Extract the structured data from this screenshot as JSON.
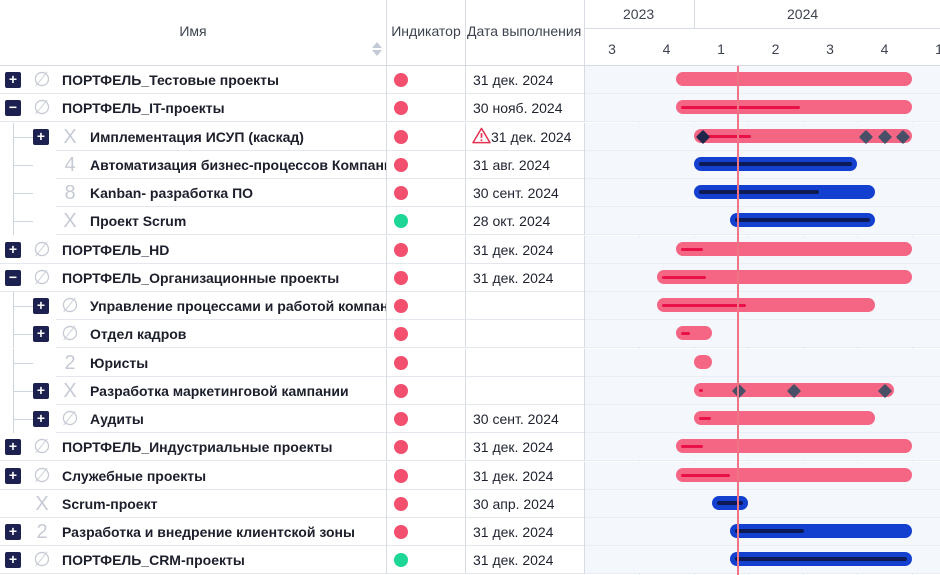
{
  "header": {
    "name_label": "Имя",
    "indicator_label": "Индикатор",
    "date_label": "Дата выполнения"
  },
  "timeline": {
    "years": [
      {
        "label": "2023",
        "x": 38
      },
      {
        "label": "2024",
        "x": 202
      }
    ],
    "quarters": [
      "3",
      "4",
      "1",
      "2",
      "3",
      "4",
      "1"
    ],
    "today": "2024-03"
  },
  "colors": {
    "red": "#f2506e",
    "green": "#1ed695",
    "bar_pink": "#f46684",
    "progress_pink": "#e8114a",
    "bar_blue": "#1340cf",
    "progress_navy": "#0d1a55",
    "toggle": "#1d2150"
  },
  "rows": [
    {
      "level": 0,
      "toggle": "+",
      "glyph": "∅",
      "title": "ПОРТФЕЛЬ_Тестовые проекты",
      "indicator": "red",
      "date": "31 дек. 2024",
      "warn": false,
      "bar": {
        "color": "pink",
        "start": "2023-12",
        "end": "2024-12",
        "progress": 0
      }
    },
    {
      "level": 0,
      "toggle": "−",
      "glyph": "∅",
      "title": "ПОРТФЕЛЬ_IT-проекты",
      "indicator": "red",
      "date": "30 нояб. 2024",
      "warn": false,
      "bar": {
        "color": "pink",
        "start": "2023-12",
        "end": "2024-12",
        "progress": 0.53
      }
    },
    {
      "level": 1,
      "toggle": "+",
      "glyph": "X",
      "title": "Имплементация ИСУП (каскад)",
      "indicator": "red",
      "date": "31 дек. 2024",
      "warn": true,
      "bar": {
        "color": "pink",
        "start": "2024-01",
        "end": "2024-12",
        "progress": 0.25,
        "milestones": [
          "2024-01",
          "2024-10",
          "2024-11",
          "2024-12"
        ]
      }
    },
    {
      "level": 1,
      "toggle": "",
      "glyph": "4",
      "title": "Автоматизация бизнес-процессов Компании",
      "indicator": "red",
      "date": "31 авг. 2024",
      "warn": false,
      "bar": {
        "color": "blue",
        "start": "2024-01",
        "end": "2024-09",
        "progress": 1
      }
    },
    {
      "level": 1,
      "toggle": "",
      "glyph": "8",
      "title": "Kanban- разработка ПО",
      "indicator": "red",
      "date": "30 сент. 2024",
      "warn": false,
      "bar": {
        "color": "blue",
        "start": "2024-01",
        "end": "2024-10",
        "progress": 0.7
      }
    },
    {
      "level": 1,
      "toggle": "",
      "glyph": "X",
      "title": "Проект Scrum",
      "indicator": "green",
      "date": "28 окт. 2024",
      "warn": false,
      "bar": {
        "color": "blue",
        "start": "2024-03",
        "end": "2024-10",
        "progress": 1
      }
    },
    {
      "level": 0,
      "toggle": "+",
      "glyph": "∅",
      "title": "ПОРТФЕЛЬ_HD",
      "indicator": "red",
      "date": "31 дек. 2024",
      "warn": false,
      "bar": {
        "color": "pink",
        "start": "2023-12",
        "end": "2024-12",
        "progress": 0.1
      }
    },
    {
      "level": 0,
      "toggle": "−",
      "glyph": "∅",
      "title": "ПОРТФЕЛЬ_Организационные проекты",
      "indicator": "red",
      "date": "31 дек. 2024",
      "warn": false,
      "bar": {
        "color": "pink",
        "start": "2023-11",
        "end": "2024-12",
        "progress": 0.18
      }
    },
    {
      "level": 1,
      "toggle": "+",
      "glyph": "∅",
      "title": "Управление процессами и работой компании",
      "indicator": "red",
      "date": "",
      "warn": false,
      "bar": {
        "color": "pink",
        "start": "2023-11",
        "end": "2024-10",
        "progress": 0.4
      }
    },
    {
      "level": 1,
      "toggle": "+",
      "glyph": "∅",
      "title": "Отдел кадров",
      "indicator": "red",
      "date": "",
      "warn": false,
      "bar": {
        "color": "pink",
        "start": "2023-12",
        "end": "2024-01",
        "progress": 0.35
      }
    },
    {
      "level": 1,
      "toggle": "",
      "glyph": "2",
      "title": "Юристы",
      "indicator": "red",
      "date": "",
      "warn": false,
      "bar": {
        "color": "pink",
        "start": "2024-01",
        "end": "2024-01",
        "progress": 0
      }
    },
    {
      "level": 1,
      "toggle": "+",
      "glyph": "X",
      "title": "Разработка маркетинговой кампании",
      "indicator": "red",
      "date": "",
      "warn": false,
      "bar": {
        "color": "pink",
        "start": "2024-01",
        "end": "2024-11",
        "progress": 0.02,
        "milestones": [
          "2024-03",
          "2024-06",
          "2024-11"
        ]
      }
    },
    {
      "level": 1,
      "toggle": "+",
      "glyph": "∅",
      "title": "Аудиты",
      "indicator": "red",
      "date": "30 сент. 2024",
      "warn": false,
      "bar": {
        "color": "pink",
        "start": "2024-01",
        "end": "2024-10",
        "progress": 0.07
      }
    },
    {
      "level": 0,
      "toggle": "+",
      "glyph": "∅",
      "title": "ПОРТФЕЛЬ_Индустриальные проекты",
      "indicator": "red",
      "date": "31 дек. 2024",
      "warn": false,
      "bar": {
        "color": "pink",
        "start": "2023-12",
        "end": "2024-12",
        "progress": 0.1
      }
    },
    {
      "level": 0,
      "toggle": "+",
      "glyph": "∅",
      "title": "Служебные проекты",
      "indicator": "red",
      "date": "31 дек. 2024",
      "warn": false,
      "bar": {
        "color": "pink",
        "start": "2023-12",
        "end": "2024-12",
        "progress": 0.22
      }
    },
    {
      "level": 0,
      "toggle": "",
      "glyph": "X",
      "title": "Scrum-проект",
      "indicator": "red",
      "date": "30 апр. 2024",
      "warn": false,
      "bar": {
        "color": "blue",
        "start": "2024-02",
        "end": "2024-03",
        "progress": 1
      }
    },
    {
      "level": 0,
      "toggle": "+",
      "glyph": "2",
      "title": "Разработка и внедрение клиентской зоны",
      "indicator": "red",
      "date": "31 дек. 2024",
      "warn": false,
      "bar": {
        "color": "blue",
        "start": "2024-03",
        "end": "2024-12",
        "progress": 0.4
      }
    },
    {
      "level": 0,
      "toggle": "+",
      "glyph": "∅",
      "title": "ПОРТФЕЛЬ_CRM-проекты",
      "indicator": "green",
      "date": "31 дек. 2024",
      "warn": false,
      "bar": {
        "color": "blue",
        "start": "2024-03",
        "end": "2024-12",
        "progress": 1
      }
    }
  ]
}
